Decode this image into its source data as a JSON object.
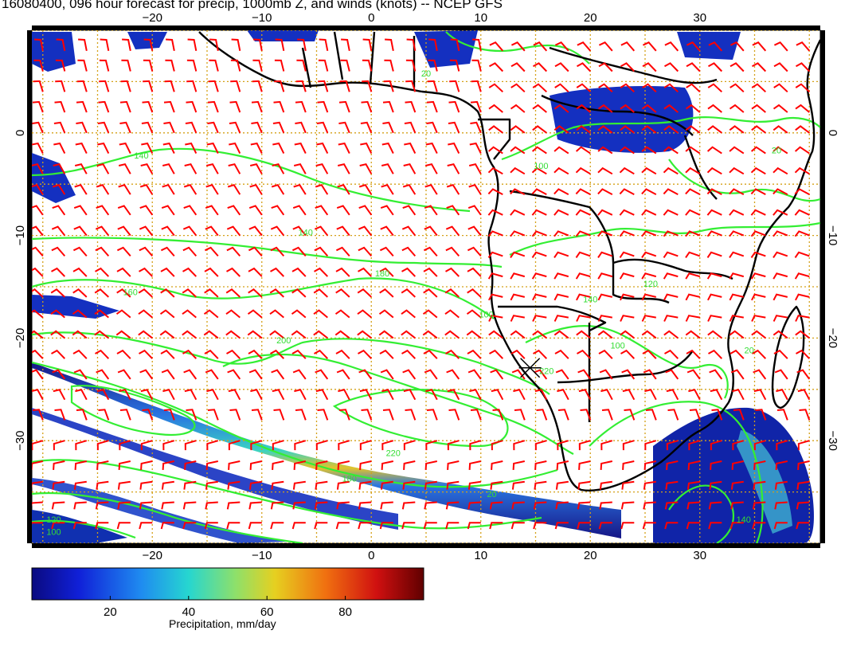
{
  "title": "16080400, 096 hour forecast for precip, 1000mb Z, and winds (knots) -- NCEP GFS",
  "map": {
    "lon_range": [
      -31,
      41
    ],
    "lat_range": [
      -40,
      10
    ],
    "grid": true,
    "lon_ticks": [
      -20,
      -10,
      0,
      10,
      20,
      30
    ],
    "lat_ticks": [
      0,
      -10,
      -20,
      -30
    ],
    "lon_tick_labels": [
      "−20",
      "−10",
      "0",
      "10",
      "20",
      "30"
    ],
    "lat_tick_labels": [
      "0",
      "−10",
      "−20",
      "−30"
    ],
    "colors": {
      "grid": "#d4a017",
      "contour": "#33ee33",
      "wind_barb": "#ff0000",
      "coast": "#000000",
      "marker": "#000000"
    },
    "station_marker": {
      "lon": 14.5,
      "lat": -22.9
    },
    "contours": [
      {
        "label": "140",
        "lon": -21.0,
        "lat": -2.5
      },
      {
        "label": "140",
        "lon": -6.0,
        "lat": -10.0
      },
      {
        "label": "160",
        "lon": -22.0,
        "lat": -15.8
      },
      {
        "label": "180",
        "lon": 1.0,
        "lat": -14.0
      },
      {
        "label": "200",
        "lon": -8.0,
        "lat": -20.5
      },
      {
        "label": "220",
        "lon": 16.0,
        "lat": -23.5
      },
      {
        "label": "220",
        "lon": 2.0,
        "lat": -31.5
      },
      {
        "label": "180",
        "lon": -2.0,
        "lat": -34.0
      },
      {
        "label": "120",
        "lon": -29.0,
        "lat": -38.0
      },
      {
        "label": "100",
        "lon": -29.0,
        "lat": -39.2
      },
      {
        "label": "100",
        "lon": 15.5,
        "lat": -3.5
      },
      {
        "label": "100",
        "lon": 10.5,
        "lat": -18.0
      },
      {
        "label": "100",
        "lon": 22.5,
        "lat": -21.0
      },
      {
        "label": "140",
        "lon": 20.0,
        "lat": -16.5
      },
      {
        "label": "120",
        "lon": 25.5,
        "lat": -15.0
      },
      {
        "label": "20",
        "lon": 34.5,
        "lat": -21.5
      },
      {
        "label": "20",
        "lon": 37.0,
        "lat": -2.0
      },
      {
        "label": "140",
        "lon": 34.0,
        "lat": -38.0
      },
      {
        "label": "20",
        "lon": 11.0,
        "lat": -35.5
      },
      {
        "label": "20",
        "lon": 5.0,
        "lat": 5.5
      }
    ]
  },
  "colorbar": {
    "ticks": [
      20,
      40,
      60,
      80
    ],
    "range": [
      0,
      100
    ],
    "label": "Precipitation, mm/day",
    "colors": [
      "#0a0a80",
      "#1020d8",
      "#1f8cf0",
      "#26d6d0",
      "#8ee06a",
      "#e6d020",
      "#f07010",
      "#d01010",
      "#600000"
    ]
  }
}
